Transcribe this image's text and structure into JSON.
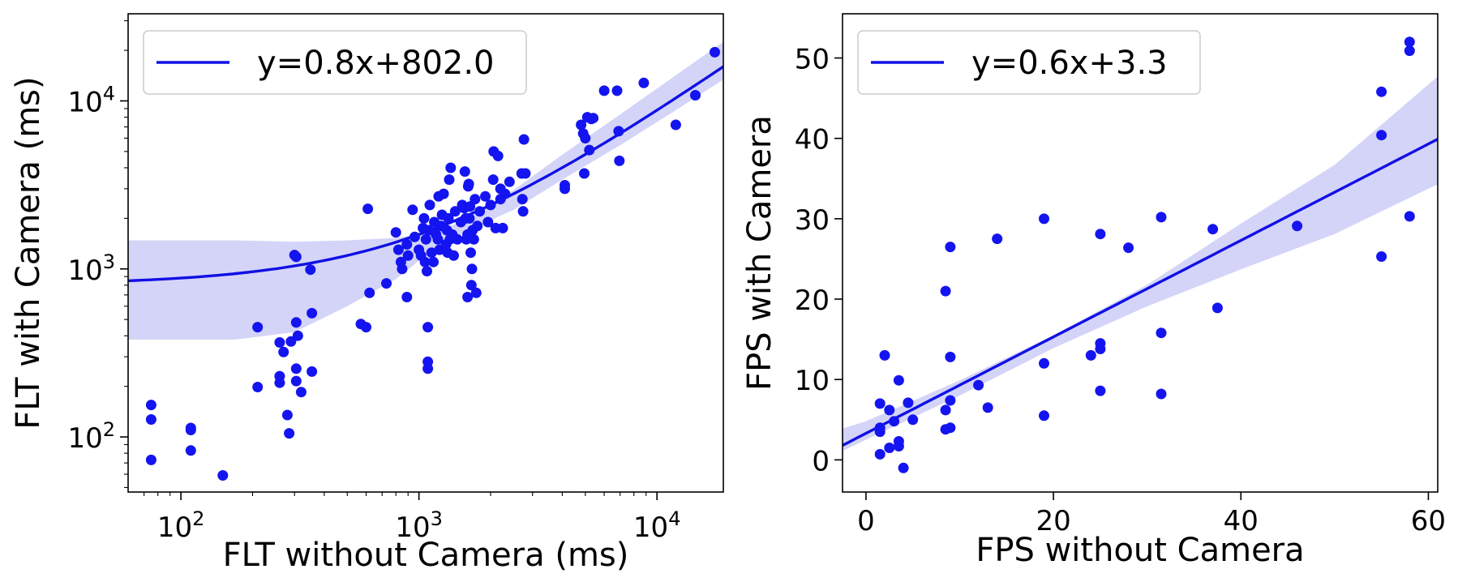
{
  "chart_data": [
    {
      "type": "scatter",
      "xlabel": "FLT without Camera (ms)",
      "ylabel": "FLT with Camera (ms)",
      "x_scale": "log",
      "y_scale": "log",
      "xlim": [
        60,
        19000
      ],
      "ylim": [
        47,
        33000
      ],
      "x_ticks": [
        {
          "value": 100,
          "base": "10",
          "exp": "2"
        },
        {
          "value": 1000,
          "base": "10",
          "exp": "3"
        },
        {
          "value": 10000,
          "base": "10",
          "exp": "4"
        }
      ],
      "y_ticks": [
        {
          "value": 100,
          "base": "10",
          "exp": "2"
        },
        {
          "value": 1000,
          "base": "10",
          "exp": "3"
        },
        {
          "value": 10000,
          "base": "10",
          "exp": "4"
        }
      ],
      "grid": false,
      "legend_position": "top-left",
      "point_color": "#1414f0",
      "fit_color": "#1010e6",
      "band_color": "#d4d4f8",
      "fit": {
        "label": "y=0.8x+802.0",
        "slope": 0.8,
        "intercept": 802.0
      },
      "band": [
        [
          60,
          1480,
          380
        ],
        [
          170,
          1480,
          380
        ],
        [
          300,
          1450,
          420
        ],
        [
          500,
          1480,
          600
        ],
        [
          800,
          1530,
          870
        ],
        [
          1200,
          1680,
          1370
        ],
        [
          1600,
          1980,
          1690
        ],
        [
          2500,
          2950,
          2250
        ],
        [
          4000,
          4780,
          3400
        ],
        [
          7000,
          8300,
          5450
        ],
        [
          12000,
          14200,
          8800
        ],
        [
          19000,
          22500,
          13400
        ]
      ],
      "points": [
        [
          75,
          155
        ],
        [
          75,
          127
        ],
        [
          75,
          73
        ],
        [
          110,
          113
        ],
        [
          110,
          110
        ],
        [
          110,
          83
        ],
        [
          150,
          59
        ],
        [
          210,
          450
        ],
        [
          210,
          198
        ],
        [
          260,
          365
        ],
        [
          260,
          230
        ],
        [
          260,
          210
        ],
        [
          270,
          320
        ],
        [
          280,
          135
        ],
        [
          285,
          105
        ],
        [
          290,
          370
        ],
        [
          300,
          1210
        ],
        [
          305,
          1180
        ],
        [
          305,
          480
        ],
        [
          305,
          255
        ],
        [
          305,
          215
        ],
        [
          310,
          400
        ],
        [
          320,
          185
        ],
        [
          350,
          990
        ],
        [
          355,
          545
        ],
        [
          355,
          245
        ],
        [
          570,
          470
        ],
        [
          600,
          450
        ],
        [
          610,
          2280
        ],
        [
          620,
          720
        ],
        [
          730,
          820
        ],
        [
          800,
          1650
        ],
        [
          820,
          1300
        ],
        [
          840,
          1100
        ],
        [
          850,
          1000
        ],
        [
          890,
          680
        ],
        [
          890,
          1400
        ],
        [
          900,
          1200
        ],
        [
          940,
          2250
        ],
        [
          960,
          1550
        ],
        [
          1000,
          1300
        ],
        [
          1020,
          1200
        ],
        [
          1040,
          1750
        ],
        [
          1050,
          2000
        ],
        [
          1060,
          1100
        ],
        [
          1070,
          1500
        ],
        [
          1080,
          970
        ],
        [
          1090,
          280
        ],
        [
          1090,
          255
        ],
        [
          1090,
          450
        ],
        [
          1100,
          1700
        ],
        [
          1110,
          2400
        ],
        [
          1130,
          1250
        ],
        [
          1150,
          1100
        ],
        [
          1160,
          1900
        ],
        [
          1180,
          1600
        ],
        [
          1200,
          1500
        ],
        [
          1210,
          2700
        ],
        [
          1220,
          1300
        ],
        [
          1240,
          1800
        ],
        [
          1250,
          2100
        ],
        [
          1270,
          2800
        ],
        [
          1300,
          1400
        ],
        [
          1310,
          1700
        ],
        [
          1320,
          1250
        ],
        [
          1330,
          2000
        ],
        [
          1340,
          3400
        ],
        [
          1350,
          1500
        ],
        [
          1360,
          4000
        ],
        [
          1380,
          1600
        ],
        [
          1400,
          1200
        ],
        [
          1420,
          2200
        ],
        [
          1450,
          1500
        ],
        [
          1500,
          1900
        ],
        [
          1520,
          2400
        ],
        [
          1550,
          2300
        ],
        [
          1560,
          3800
        ],
        [
          1570,
          2000
        ],
        [
          1580,
          1500
        ],
        [
          1600,
          680
        ],
        [
          1600,
          1600
        ],
        [
          1610,
          3100
        ],
        [
          1620,
          3200
        ],
        [
          1630,
          2000
        ],
        [
          1640,
          2350
        ],
        [
          1650,
          1250
        ],
        [
          1660,
          800
        ],
        [
          1670,
          1000
        ],
        [
          1680,
          1700
        ],
        [
          1700,
          1500
        ],
        [
          1720,
          2600
        ],
        [
          1740,
          720
        ],
        [
          1760,
          1800
        ],
        [
          1800,
          2200
        ],
        [
          1900,
          2700
        ],
        [
          1950,
          1900
        ],
        [
          2000,
          2400
        ],
        [
          2050,
          3400
        ],
        [
          2060,
          5000
        ],
        [
          2100,
          1750
        ],
        [
          2150,
          4700
        ],
        [
          2200,
          3000
        ],
        [
          2200,
          2600
        ],
        [
          2250,
          1750
        ],
        [
          2300,
          2800
        ],
        [
          2400,
          3300
        ],
        [
          2700,
          3700
        ],
        [
          2720,
          2600
        ],
        [
          2740,
          2200
        ],
        [
          2760,
          5900
        ],
        [
          2800,
          3700
        ],
        [
          4100,
          3150
        ],
        [
          4100,
          3000
        ],
        [
          4800,
          7200
        ],
        [
          4900,
          6400
        ],
        [
          4950,
          3700
        ],
        [
          5000,
          6000
        ],
        [
          5100,
          8000
        ],
        [
          5200,
          5100
        ],
        [
          5300,
          7800
        ],
        [
          5400,
          7900
        ],
        [
          6000,
          11500
        ],
        [
          6800,
          11500
        ],
        [
          6900,
          6600
        ],
        [
          6950,
          4400
        ],
        [
          8800,
          12800
        ],
        [
          12000,
          7200
        ],
        [
          14500,
          10800
        ],
        [
          17500,
          19500
        ]
      ]
    },
    {
      "type": "scatter",
      "xlabel": "FPS without Camera",
      "ylabel": "FPS with Camera",
      "xlim": [
        -2.5,
        61
      ],
      "ylim": [
        -4,
        55.5
      ],
      "x_ticks": [
        0,
        20,
        40,
        60
      ],
      "y_ticks": [
        0,
        10,
        20,
        30,
        40,
        50
      ],
      "grid": false,
      "legend_position": "top-left",
      "point_color": "#1414f0",
      "fit_color": "#1010e6",
      "band_color": "#d4d4f8",
      "fit": {
        "label": "y=0.6x+3.3",
        "slope": 0.6,
        "intercept": 3.3
      },
      "band": [
        [
          -2.5,
          3.9,
          1.1
        ],
        [
          0,
          4.8,
          2.5
        ],
        [
          10,
          9.9,
          8.0
        ],
        [
          20,
          15.5,
          13.9
        ],
        [
          30,
          21.8,
          19.1
        ],
        [
          40,
          29.4,
          23.7
        ],
        [
          50,
          36.7,
          28.1
        ],
        [
          61,
          47.7,
          34.3
        ]
      ],
      "points": [
        [
          1.5,
          7.0
        ],
        [
          1.5,
          4.0
        ],
        [
          1.5,
          3.5
        ],
        [
          1.5,
          0.7
        ],
        [
          2,
          13.0
        ],
        [
          2.5,
          6.2
        ],
        [
          2.5,
          1.5
        ],
        [
          3,
          4.8
        ],
        [
          3.5,
          2.3
        ],
        [
          3.5,
          1.7
        ],
        [
          3.5,
          9.9
        ],
        [
          4,
          -1.0
        ],
        [
          4.5,
          7.1
        ],
        [
          5,
          5.0
        ],
        [
          8.5,
          21.0
        ],
        [
          8.5,
          6.2
        ],
        [
          8.5,
          3.8
        ],
        [
          9,
          26.5
        ],
        [
          9,
          12.8
        ],
        [
          9,
          7.4
        ],
        [
          9,
          4.0
        ],
        [
          12,
          9.3
        ],
        [
          13,
          6.5
        ],
        [
          14,
          27.5
        ],
        [
          19,
          30.0
        ],
        [
          19,
          12.0
        ],
        [
          19,
          5.5
        ],
        [
          24,
          13.0
        ],
        [
          25,
          28.1
        ],
        [
          25,
          14.5
        ],
        [
          25,
          13.8
        ],
        [
          25,
          8.6
        ],
        [
          28,
          26.4
        ],
        [
          31.5,
          30.2
        ],
        [
          31.5,
          15.8
        ],
        [
          31.5,
          8.2
        ],
        [
          37,
          28.7
        ],
        [
          37.5,
          18.9
        ],
        [
          46,
          29.1
        ],
        [
          55,
          45.8
        ],
        [
          55,
          40.4
        ],
        [
          55,
          25.3
        ],
        [
          58,
          52.0
        ],
        [
          58,
          50.9
        ],
        [
          58,
          30.3
        ]
      ]
    }
  ]
}
